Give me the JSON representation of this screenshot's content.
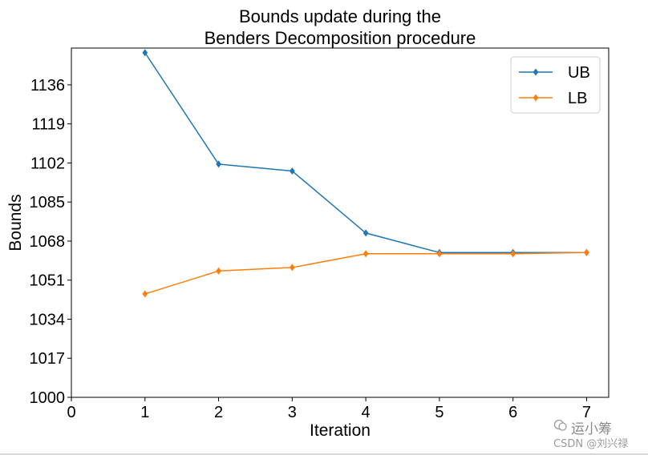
{
  "chart_data": {
    "type": "line",
    "title_lines": [
      "Bounds update during the",
      "Benders Decomposition procedure"
    ],
    "xlabel": "Iteration",
    "ylabel": "Bounds",
    "x": [
      1,
      2,
      3,
      4,
      5,
      6,
      7
    ],
    "xlim": [
      0,
      7.3
    ],
    "ylim": [
      1000,
      1152
    ],
    "x_ticks": [
      0,
      1,
      2,
      3,
      4,
      5,
      6,
      7
    ],
    "y_ticks": [
      1000,
      1017,
      1034,
      1051,
      1068,
      1085,
      1102,
      1119,
      1136
    ],
    "series": [
      {
        "name": "UB",
        "color": "#1f77b4",
        "values": [
          1150,
          1101.5,
          1098.5,
          1071.5,
          1063,
          1063,
          1063
        ]
      },
      {
        "name": "LB",
        "color": "#ff7f0e",
        "values": [
          1045,
          1055,
          1056.5,
          1062.5,
          1062.5,
          1062.5,
          1063
        ]
      }
    ],
    "legend_position": "top-right",
    "grid": false
  },
  "watermark": {
    "brand": "运小筹",
    "source": "CSDN @刘兴禄"
  }
}
